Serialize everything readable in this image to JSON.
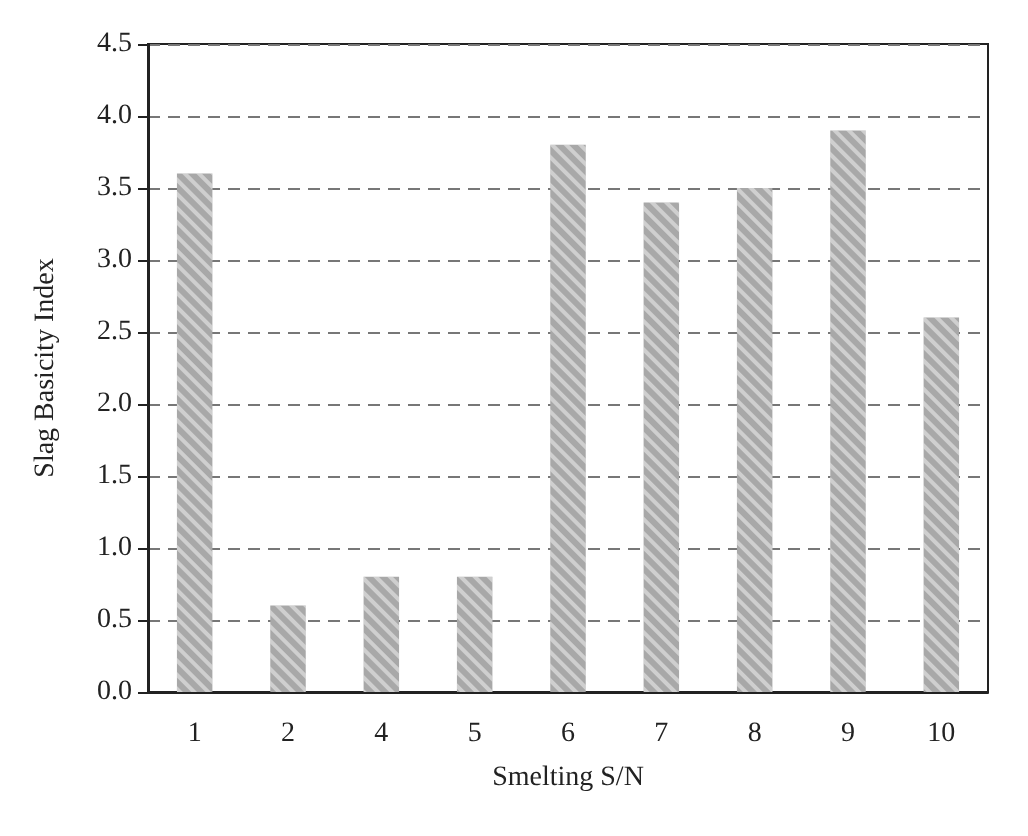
{
  "chart_data": {
    "type": "bar",
    "xlabel": "Smelting S/N",
    "ylabel": "Slag Basicity Index",
    "categories": [
      "1",
      "2",
      "4",
      "5",
      "6",
      "7",
      "8",
      "9",
      "10"
    ],
    "values": [
      3.6,
      0.6,
      0.8,
      0.8,
      3.8,
      3.4,
      3.5,
      3.9,
      2.6
    ],
    "color": "#a8a8a8",
    "ylim": [
      0,
      4.5
    ],
    "yticks": [
      {
        "value": 0,
        "label": "0.0"
      },
      0.5,
      {
        "value": 1,
        "label": "1.0"
      },
      1.5,
      {
        "value": 2,
        "label": "2.0"
      },
      2.5,
      {
        "value": 3,
        "label": "3.0"
      },
      3.5,
      {
        "value": 4,
        "label": "4.0"
      },
      4.5
    ],
    "grid": "y"
  }
}
